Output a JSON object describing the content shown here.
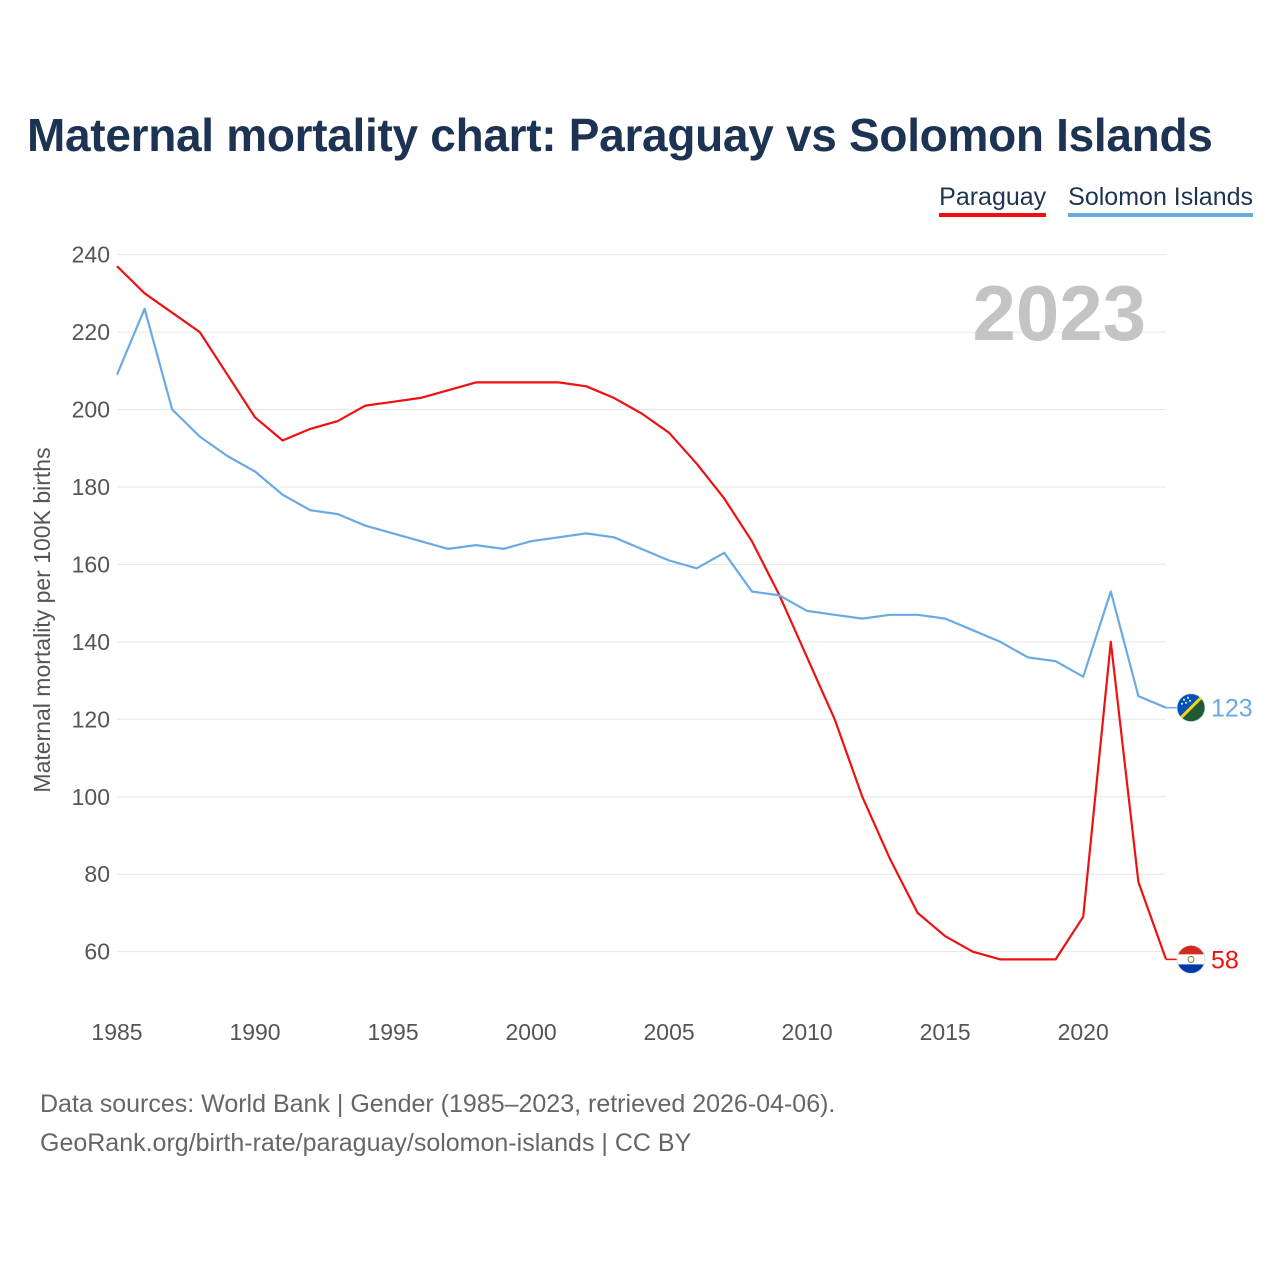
{
  "title": "Maternal mortality chart: Paraguay vs Solomon Islands",
  "legend": {
    "paraguay": "Paraguay",
    "solomon": "Solomon Islands"
  },
  "source": {
    "line1": "Data sources: World Bank | Gender (1985–2023, retrieved 2026-04-06).",
    "line2": "GeoRank.org/birth-rate/paraguay/solomon-islands | CC BY"
  },
  "chart_data": {
    "type": "line",
    "title": "Maternal mortality chart: Paraguay vs Solomon Islands",
    "ylabel": "Maternal mortality per 100K births",
    "xlabel": "",
    "year_label": "2023",
    "xlim": [
      1985,
      2023
    ],
    "ylim": [
      47,
      243
    ],
    "yticks": [
      60,
      80,
      100,
      120,
      140,
      160,
      180,
      200,
      220,
      240
    ],
    "xticks": [
      1985,
      1990,
      1995,
      2000,
      2005,
      2010,
      2015,
      2020
    ],
    "grid": true,
    "x": [
      1985,
      1986,
      1987,
      1988,
      1989,
      1990,
      1991,
      1992,
      1993,
      1994,
      1995,
      1996,
      1997,
      1998,
      1999,
      2000,
      2001,
      2002,
      2003,
      2004,
      2005,
      2006,
      2007,
      2008,
      2009,
      2010,
      2011,
      2012,
      2013,
      2014,
      2015,
      2016,
      2017,
      2018,
      2019,
      2020,
      2021,
      2022,
      2023
    ],
    "series": [
      {
        "name": "Paraguay",
        "color": "#ee1111",
        "end_label": "58",
        "values": [
          237,
          230,
          225,
          220,
          209,
          198,
          192,
          195,
          197,
          201,
          202,
          203,
          205,
          207,
          207,
          207,
          207,
          206,
          203,
          199,
          194,
          186,
          177,
          166,
          152,
          136,
          120,
          100,
          84,
          70,
          64,
          60,
          58,
          58,
          58,
          69,
          140,
          78,
          58
        ]
      },
      {
        "name": "Solomon Islands",
        "color": "#6aaae4",
        "end_label": "123",
        "values": [
          209,
          226,
          200,
          193,
          188,
          184,
          178,
          174,
          173,
          170,
          168,
          166,
          164,
          165,
          164,
          166,
          167,
          168,
          167,
          164,
          161,
          159,
          163,
          153,
          152,
          148,
          147,
          146,
          147,
          147,
          146,
          143,
          140,
          136,
          135,
          131,
          153,
          126,
          123
        ]
      }
    ]
  }
}
